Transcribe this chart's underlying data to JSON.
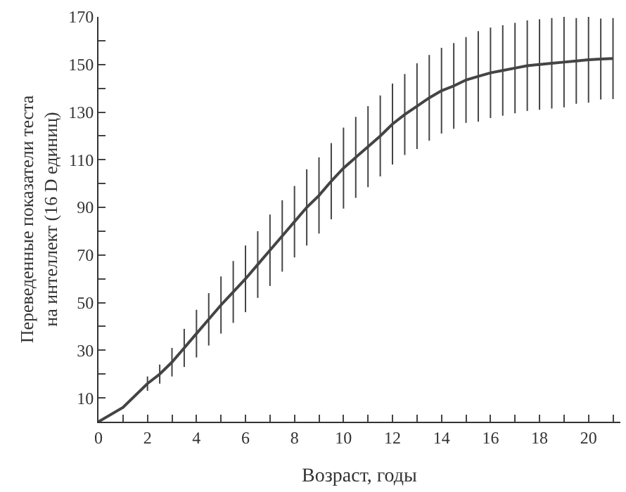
{
  "chart_data": {
    "type": "line",
    "xlabel": "Возраст, годы",
    "ylabel": "Переведенные показатели теста\nна интеллект (16 D единиц)",
    "x": [
      0,
      1,
      2,
      2.5,
      3,
      3.5,
      4,
      4.5,
      5,
      5.5,
      6,
      6.5,
      7,
      7.5,
      8,
      8.5,
      9,
      9.5,
      10,
      10.5,
      11,
      11.5,
      12,
      12.5,
      13,
      13.5,
      14,
      14.5,
      15,
      15.5,
      16,
      16.5,
      17,
      17.5,
      18,
      18.5,
      19,
      19.5,
      20,
      20.5,
      21
    ],
    "series": [
      {
        "color": "#444444",
        "values": [
          0,
          6,
          16,
          20,
          25,
          31,
          37,
          43,
          49,
          54.5,
          60,
          66,
          72,
          78,
          84,
          90,
          95,
          101,
          106.5,
          111,
          115.5,
          120,
          125,
          129,
          132.5,
          136,
          139,
          141,
          143.5,
          145,
          146.5,
          147.5,
          148.5,
          149.5,
          150,
          150.5,
          151,
          151.5,
          152,
          152.3,
          152.5
        ],
        "errors": [
          null,
          null,
          3,
          4,
          6,
          8,
          10,
          11,
          12,
          13,
          14,
          14,
          15,
          15,
          15,
          16,
          16,
          16,
          17,
          17,
          17,
          17,
          17,
          17,
          18,
          18,
          18,
          18,
          18,
          19,
          19,
          19,
          19,
          19,
          19,
          19,
          19,
          18,
          18,
          17,
          17
        ]
      }
    ],
    "xlim": [
      0,
      21.3
    ],
    "ylim": [
      0,
      170
    ],
    "xticks": [
      0,
      {
        "value": 1,
        "label": null
      },
      2,
      {
        "value": 3,
        "label": null
      },
      4,
      {
        "value": 5,
        "label": null
      },
      6,
      {
        "value": 7,
        "label": null
      },
      8,
      {
        "value": 9,
        "label": null
      },
      10,
      {
        "value": 11,
        "label": null
      },
      12,
      {
        "value": 13,
        "label": null
      },
      14,
      {
        "value": 15,
        "label": null
      },
      16,
      {
        "value": 17,
        "label": null
      },
      18,
      {
        "value": 19,
        "label": null
      },
      20,
      {
        "value": 21,
        "label": null
      }
    ],
    "yticks": [
      {
        "value": 0,
        "label": null
      },
      10,
      {
        "value": 20,
        "label": null
      },
      30,
      {
        "value": 40,
        "label": null
      },
      50,
      {
        "value": 60,
        "label": null
      },
      70,
      {
        "value": 80,
        "label": null
      },
      90,
      {
        "value": 100,
        "label": null
      },
      110,
      {
        "value": 120,
        "label": null
      },
      130,
      {
        "value": 140,
        "label": null
      },
      150,
      {
        "value": 160,
        "label": null
      },
      170
    ],
    "legend": false,
    "marker": "none",
    "line_style": "solid"
  }
}
